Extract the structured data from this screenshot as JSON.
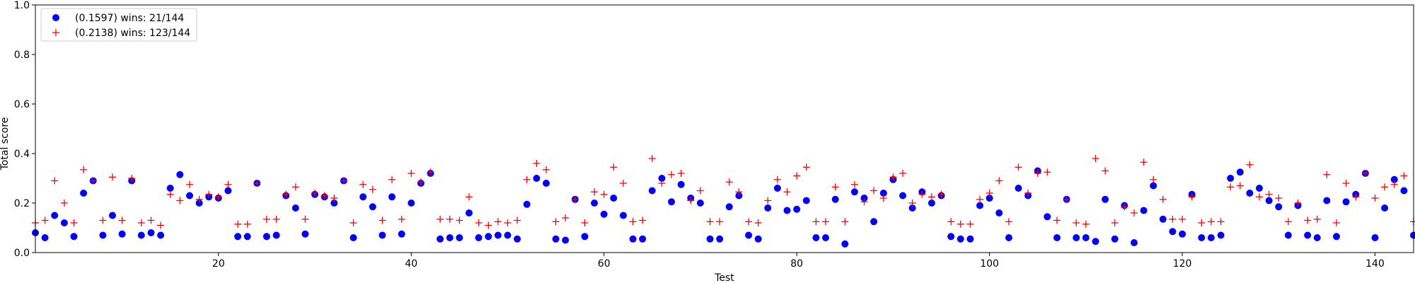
{
  "chart_data": {
    "type": "scatter",
    "xlabel": "Test",
    "ylabel": "Total score",
    "xlim": [
      1,
      144
    ],
    "ylim": [
      0,
      1
    ],
    "x_ticks": [
      20,
      40,
      60,
      80,
      100,
      120,
      140
    ],
    "y_ticks": [
      0.0,
      0.2,
      0.4,
      0.6,
      0.8,
      1.0
    ],
    "x_tick_labels": [
      "20",
      "40",
      "60",
      "80",
      "100",
      "120",
      "140"
    ],
    "y_tick_labels": [
      "0.0",
      "0.2",
      "0.4",
      "0.6",
      "0.8",
      "1.0"
    ],
    "grid": false,
    "legend_position": "top-left",
    "series": [
      {
        "name": "(0.1597) wins: 21/144",
        "marker": "circle",
        "color": "#0000ff",
        "x": [
          1,
          2,
          3,
          4,
          5,
          6,
          7,
          8,
          9,
          10,
          11,
          12,
          13,
          14,
          15,
          16,
          17,
          18,
          19,
          20,
          21,
          22,
          23,
          24,
          25,
          26,
          27,
          28,
          29,
          30,
          31,
          32,
          33,
          34,
          35,
          36,
          37,
          38,
          39,
          40,
          41,
          42,
          43,
          44,
          45,
          46,
          47,
          48,
          49,
          50,
          51,
          52,
          53,
          54,
          55,
          56,
          57,
          58,
          59,
          60,
          61,
          62,
          63,
          64,
          65,
          66,
          67,
          68,
          69,
          70,
          71,
          72,
          73,
          74,
          75,
          76,
          77,
          78,
          79,
          80,
          81,
          82,
          83,
          84,
          85,
          86,
          87,
          88,
          89,
          90,
          91,
          92,
          93,
          94,
          95,
          96,
          97,
          98,
          99,
          100,
          101,
          102,
          103,
          104,
          105,
          106,
          107,
          108,
          109,
          110,
          111,
          112,
          113,
          114,
          115,
          116,
          117,
          118,
          119,
          120,
          121,
          122,
          123,
          124,
          125,
          126,
          127,
          128,
          129,
          130,
          131,
          132,
          133,
          134,
          135,
          136,
          137,
          138,
          139,
          140,
          141,
          142,
          143,
          144
        ],
        "y": [
          0.08,
          0.06,
          0.15,
          0.12,
          0.065,
          0.24,
          0.29,
          0.07,
          0.15,
          0.075,
          0.29,
          0.07,
          0.08,
          0.07,
          0.26,
          0.315,
          0.23,
          0.2,
          0.225,
          0.22,
          0.25,
          0.065,
          0.065,
          0.28,
          0.065,
          0.07,
          0.23,
          0.18,
          0.075,
          0.235,
          0.225,
          0.2,
          0.29,
          0.06,
          0.225,
          0.185,
          0.07,
          0.225,
          0.075,
          0.2,
          0.28,
          0.32,
          0.055,
          0.06,
          0.06,
          0.16,
          0.06,
          0.065,
          0.07,
          0.07,
          0.055,
          0.195,
          0.3,
          0.28,
          0.055,
          0.05,
          0.215,
          0.065,
          0.2,
          0.155,
          0.22,
          0.15,
          0.055,
          0.055,
          0.25,
          0.3,
          0.205,
          0.275,
          0.22,
          0.2,
          0.055,
          0.055,
          0.185,
          0.23,
          0.07,
          0.055,
          0.18,
          0.26,
          0.17,
          0.175,
          0.21,
          0.06,
          0.06,
          0.215,
          0.035,
          0.245,
          0.22,
          0.125,
          0.24,
          0.295,
          0.23,
          0.18,
          0.245,
          0.2,
          0.23,
          0.065,
          0.055,
          0.055,
          0.19,
          0.22,
          0.16,
          0.06,
          0.26,
          0.23,
          0.33,
          0.145,
          0.06,
          0.215,
          0.06,
          0.06,
          0.045,
          0.215,
          0.055,
          0.19,
          0.04,
          0.17,
          0.27,
          0.135,
          0.085,
          0.075,
          0.235,
          0.06,
          0.06,
          0.07,
          0.3,
          0.325,
          0.24,
          0.26,
          0.21,
          0.185,
          0.07,
          0.19,
          0.07,
          0.06,
          0.21,
          0.065,
          0.205,
          0.235,
          0.32,
          0.06,
          0.18,
          0.295,
          0.25,
          0.07
        ]
      },
      {
        "name": "(0.2138) wins: 123/144",
        "marker": "plus",
        "color": "#ff0000",
        "x": [
          1,
          2,
          3,
          4,
          5,
          6,
          7,
          8,
          9,
          10,
          11,
          12,
          13,
          14,
          15,
          16,
          17,
          18,
          19,
          20,
          21,
          22,
          23,
          24,
          25,
          26,
          27,
          28,
          29,
          30,
          31,
          32,
          33,
          34,
          35,
          36,
          37,
          38,
          39,
          40,
          41,
          42,
          43,
          44,
          45,
          46,
          47,
          48,
          49,
          50,
          51,
          52,
          53,
          54,
          55,
          56,
          57,
          58,
          59,
          60,
          61,
          62,
          63,
          64,
          65,
          66,
          67,
          68,
          69,
          70,
          71,
          72,
          73,
          74,
          75,
          76,
          77,
          78,
          79,
          80,
          81,
          82,
          83,
          84,
          85,
          86,
          87,
          88,
          89,
          90,
          91,
          92,
          93,
          94,
          95,
          96,
          97,
          98,
          99,
          100,
          101,
          102,
          103,
          104,
          105,
          106,
          107,
          108,
          109,
          110,
          111,
          112,
          113,
          114,
          115,
          116,
          117,
          118,
          119,
          120,
          121,
          122,
          123,
          124,
          125,
          126,
          127,
          128,
          129,
          130,
          131,
          132,
          133,
          134,
          135,
          136,
          137,
          138,
          139,
          140,
          141,
          142,
          143,
          144
        ],
        "y": [
          0.12,
          0.13,
          0.29,
          0.2,
          0.12,
          0.335,
          0.29,
          0.13,
          0.305,
          0.13,
          0.3,
          0.12,
          0.13,
          0.11,
          0.235,
          0.21,
          0.275,
          0.215,
          0.235,
          0.225,
          0.275,
          0.115,
          0.115,
          0.28,
          0.135,
          0.135,
          0.235,
          0.265,
          0.135,
          0.24,
          0.23,
          0.22,
          0.29,
          0.12,
          0.275,
          0.255,
          0.13,
          0.295,
          0.135,
          0.32,
          0.285,
          0.325,
          0.135,
          0.135,
          0.13,
          0.225,
          0.12,
          0.11,
          0.125,
          0.12,
          0.13,
          0.295,
          0.36,
          0.335,
          0.125,
          0.14,
          0.215,
          0.12,
          0.245,
          0.235,
          0.345,
          0.28,
          0.125,
          0.13,
          0.38,
          0.28,
          0.315,
          0.32,
          0.21,
          0.25,
          0.125,
          0.125,
          0.285,
          0.245,
          0.125,
          0.12,
          0.21,
          0.295,
          0.245,
          0.31,
          0.345,
          0.125,
          0.125,
          0.265,
          0.125,
          0.275,
          0.205,
          0.25,
          0.22,
          0.305,
          0.32,
          0.2,
          0.235,
          0.225,
          0.235,
          0.125,
          0.115,
          0.115,
          0.215,
          0.24,
          0.29,
          0.125,
          0.345,
          0.24,
          0.32,
          0.325,
          0.13,
          0.215,
          0.12,
          0.115,
          0.38,
          0.33,
          0.12,
          0.185,
          0.16,
          0.365,
          0.295,
          0.215,
          0.135,
          0.135,
          0.225,
          0.12,
          0.125,
          0.125,
          0.265,
          0.27,
          0.355,
          0.225,
          0.235,
          0.22,
          0.125,
          0.2,
          0.13,
          0.135,
          0.315,
          0.12,
          0.28,
          0.225,
          0.32,
          0.22,
          0.265,
          0.275,
          0.31,
          0.125
        ]
      }
    ]
  }
}
